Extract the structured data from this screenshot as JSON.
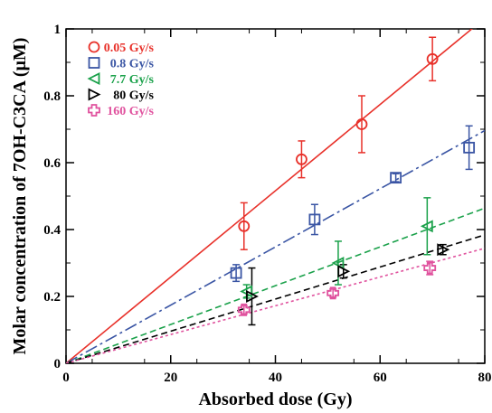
{
  "chart_data": {
    "type": "scatter",
    "title": "",
    "xlabel": "Absorbed dose (Gy)",
    "ylabel": "Molar concentration of 7OH-C3CA (μM)",
    "xlim": [
      0,
      80
    ],
    "ylim": [
      0,
      1
    ],
    "x_ticks": [
      "0",
      "20",
      "40",
      "60",
      "80"
    ],
    "y_ticks": [
      "0",
      "0.2",
      "0.4",
      "0.6",
      "0.8",
      "1"
    ],
    "grid": false,
    "legend_position": "top-left",
    "series": [
      {
        "name": "0.05 Gy/s",
        "color": "#e8312a",
        "marker": "circle",
        "line_style": "solid",
        "fit_slope": 0.0129,
        "points": [
          {
            "x": 34,
            "y": 0.41,
            "err_low": 0.07,
            "err_high": 0.07
          },
          {
            "x": 45,
            "y": 0.61,
            "err_low": 0.055,
            "err_high": 0.055
          },
          {
            "x": 56.5,
            "y": 0.715,
            "err_low": 0.085,
            "err_high": 0.085
          },
          {
            "x": 70,
            "y": 0.91,
            "err_low": 0.065,
            "err_high": 0.065
          }
        ]
      },
      {
        "name": "0.8 Gy/s",
        "color": "#3a55a4",
        "marker": "square",
        "line_style": "dashdot",
        "fit_slope": 0.0087,
        "points": [
          {
            "x": 32.5,
            "y": 0.27,
            "err_low": 0.025,
            "err_high": 0.025
          },
          {
            "x": 47.5,
            "y": 0.43,
            "err_low": 0.045,
            "err_high": 0.045
          },
          {
            "x": 63,
            "y": 0.555,
            "err_low": 0.012,
            "err_high": 0.012
          },
          {
            "x": 77,
            "y": 0.645,
            "err_low": 0.065,
            "err_high": 0.065
          }
        ]
      },
      {
        "name": "7.7 Gy/s",
        "color": "#1aa14a",
        "marker": "triangle-left",
        "line_style": "dashed",
        "fit_slope": 0.0058,
        "points": [
          {
            "x": 34.5,
            "y": 0.215,
            "err_low": 0.02,
            "err_high": 0.02
          },
          {
            "x": 52,
            "y": 0.3,
            "err_low": 0.065,
            "err_high": 0.065
          },
          {
            "x": 69,
            "y": 0.41,
            "err_low": 0.085,
            "err_high": 0.085
          }
        ]
      },
      {
        "name": "80 Gy/s",
        "color": "#000000",
        "marker": "triangle-right",
        "line_style": "dashed",
        "fit_slope": 0.0048,
        "points": [
          {
            "x": 35.5,
            "y": 0.2,
            "err_low": 0.085,
            "err_high": 0.085
          },
          {
            "x": 53,
            "y": 0.275,
            "err_low": 0.02,
            "err_high": 0.02
          },
          {
            "x": 72,
            "y": 0.34,
            "err_low": 0.015,
            "err_high": 0.015
          }
        ]
      },
      {
        "name": "160 Gy/s",
        "color": "#e0529e",
        "marker": "cross",
        "line_style": "dotted",
        "fit_slope": 0.0043,
        "points": [
          {
            "x": 34,
            "y": 0.16,
            "err_low": 0.012,
            "err_high": 0.012
          },
          {
            "x": 51,
            "y": 0.21,
            "err_low": 0.012,
            "err_high": 0.012
          },
          {
            "x": 69.5,
            "y": 0.285,
            "err_low": 0.02,
            "err_high": 0.02
          }
        ]
      }
    ]
  }
}
